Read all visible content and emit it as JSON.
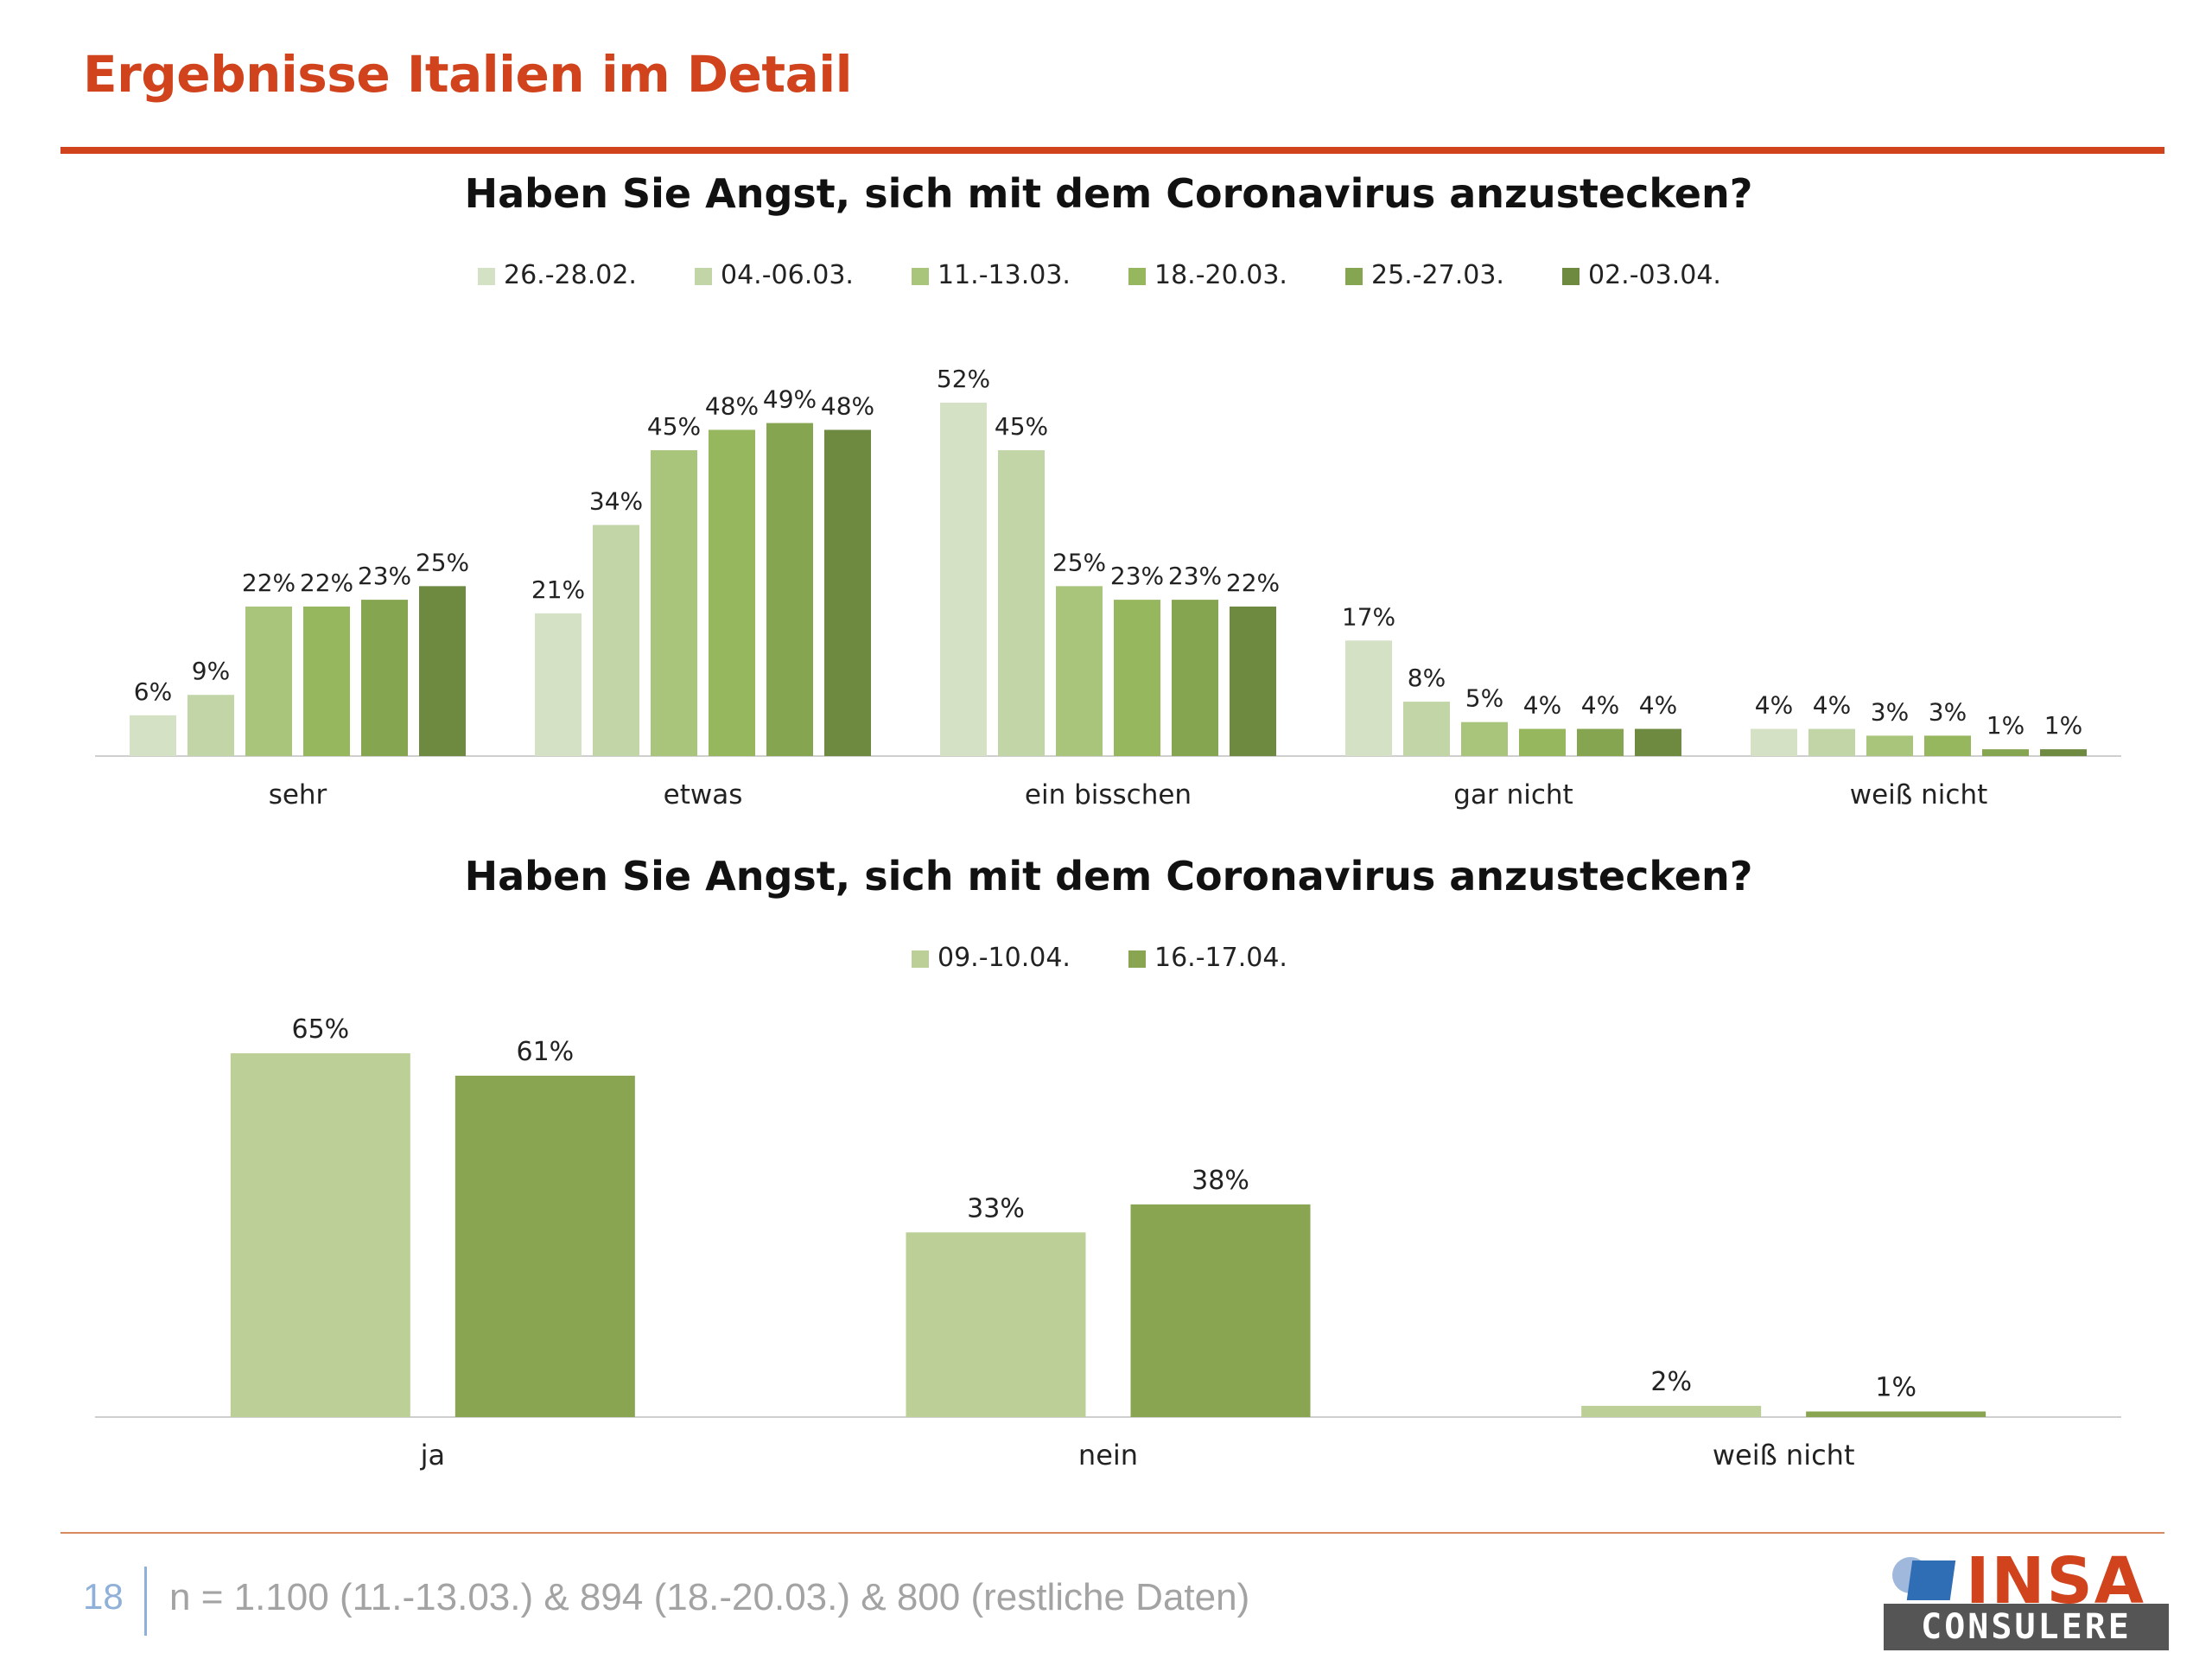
{
  "header": {
    "title": "Ergebnisse Italien im Detail"
  },
  "footer": {
    "page_number": "18",
    "note": "n = 1.100 (11.-13.03.) & 894 (18.-20.03.) & 800 (restliche Daten)",
    "logo_word": "INSA",
    "logo_sub": "CONSULERE"
  },
  "chart_data": [
    {
      "type": "bar",
      "title": "Haben Sie Angst, sich mit dem Coronavirus anzustecken?",
      "categories": [
        "sehr",
        "etwas",
        "ein bisschen",
        "gar nicht",
        "weiß nicht"
      ],
      "series": [
        {
          "name": "26.-28.02.",
          "color": "#d5e1c5",
          "values": [
            6,
            21,
            52,
            17,
            4
          ],
          "labels": [
            "6%",
            "21%",
            "52%",
            "17%",
            "4%"
          ]
        },
        {
          "name": "04.-06.03.",
          "color": "#c2d5a7",
          "values": [
            9,
            34,
            45,
            8,
            4
          ],
          "labels": [
            "9%",
            "34%",
            "45%",
            "8%",
            "4%"
          ]
        },
        {
          "name": "11.-13.03.",
          "color": "#a8c57b",
          "values": [
            22,
            45,
            25,
            5,
            3
          ],
          "labels": [
            "22%",
            "45%",
            "25%",
            "5%",
            "3%"
          ]
        },
        {
          "name": "18.-20.03.",
          "color": "#97b75f",
          "values": [
            22,
            48,
            23,
            4,
            3
          ],
          "labels": [
            "22%",
            "48%",
            "23%",
            "4%",
            "3%"
          ]
        },
        {
          "name": "25.-27.03.",
          "color": "#86a551",
          "values": [
            23,
            49,
            23,
            4,
            1
          ],
          "labels": [
            "23%",
            "49%",
            "23%",
            "4%",
            "1%"
          ]
        },
        {
          "name": "02.-03.04.",
          "color": "#6e8a40",
          "values": [
            25,
            48,
            22,
            4,
            1
          ],
          "labels": [
            "25%",
            "48%",
            "22%",
            "4%",
            "1%"
          ]
        }
      ],
      "ylim": [
        0,
        55
      ],
      "legend": "top-center",
      "grid": false
    },
    {
      "type": "bar",
      "title": "Haben Sie Angst, sich mit dem Coronavirus anzustecken?",
      "categories": [
        "ja",
        "nein",
        "weiß nicht"
      ],
      "series": [
        {
          "name": "09.-10.04.",
          "color": "#bbcf97",
          "values": [
            65,
            33,
            2
          ],
          "labels": [
            "65%",
            "33%",
            "2%"
          ]
        },
        {
          "name": "16.-17.04.",
          "color": "#89a552",
          "values": [
            61,
            38,
            1
          ],
          "labels": [
            "61%",
            "38%",
            "1%"
          ]
        }
      ],
      "ylim": [
        0,
        70
      ],
      "legend": "top-center",
      "grid": false
    }
  ]
}
